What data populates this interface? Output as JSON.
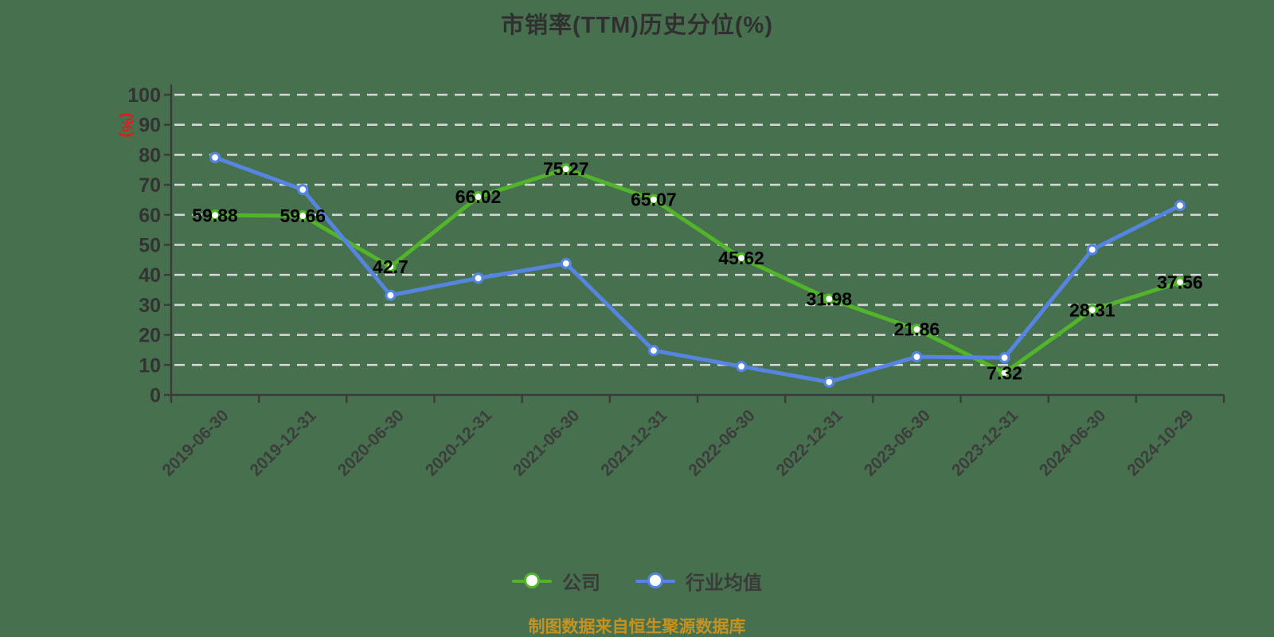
{
  "title": "市销率(TTM)历史分位(%)",
  "source_note": "制图数据来自恒生聚源数据库",
  "y_axis": {
    "name": "(%)",
    "ticks": [
      0,
      10,
      20,
      30,
      40,
      50,
      60,
      70,
      80,
      90,
      100
    ]
  },
  "legend": [
    {
      "id": "company",
      "label": "公司",
      "color": "#52b42a"
    },
    {
      "id": "industry-average",
      "label": "行业均值",
      "color": "#5585e0"
    }
  ],
  "colors": {
    "background": "#47704f",
    "grid": "#d6d6d6",
    "axis": "#3a3a3a",
    "y_tick_label": "#333333",
    "x_tick_label": "#3d3d3d",
    "data_label": "#000000",
    "y_axis_name": "#e31a1a",
    "title": "#303030",
    "legend_text": "#3a3a3a",
    "source_note": "#c6921f",
    "company_series": "#52b42a",
    "industry_series": "#5585e0",
    "marker_fill": "#ffffff"
  },
  "chart_data": {
    "type": "line",
    "title": "市销率(TTM)历史分位(%)",
    "xlabel": "",
    "ylabel": "(%)",
    "ylim": [
      0,
      100
    ],
    "y_tick_step": 10,
    "grid": "horizontal dashed",
    "legend_position": "bottom",
    "categories": [
      "2019-06-30",
      "2019-12-31",
      "2020-06-30",
      "2020-12-31",
      "2021-06-30",
      "2021-12-31",
      "2022-06-30",
      "2022-12-31",
      "2023-06-30",
      "2023-12-31",
      "2024-06-30",
      "2024-10-29"
    ],
    "series": [
      {
        "id": "company",
        "name": "公司",
        "color": "#52b42a",
        "values": [
          59.88,
          59.66,
          42.7,
          66.02,
          75.27,
          65.07,
          45.62,
          31.98,
          21.86,
          7.32,
          28.31,
          37.56
        ],
        "labels": [
          "59.88",
          "59.66",
          "42.7",
          "66.02",
          "75.27",
          "65.07",
          "45.62",
          "31.98",
          "21.86",
          "7.32",
          "28.31",
          "37.56"
        ],
        "show_labels": true
      },
      {
        "id": "industry-average",
        "name": "行业均值",
        "color": "#5585e0",
        "values": [
          79.1,
          68.4,
          33.2,
          38.9,
          43.8,
          14.8,
          9.5,
          4.3,
          12.7,
          12.4,
          48.4,
          63.1
        ],
        "show_labels": false
      }
    ]
  }
}
